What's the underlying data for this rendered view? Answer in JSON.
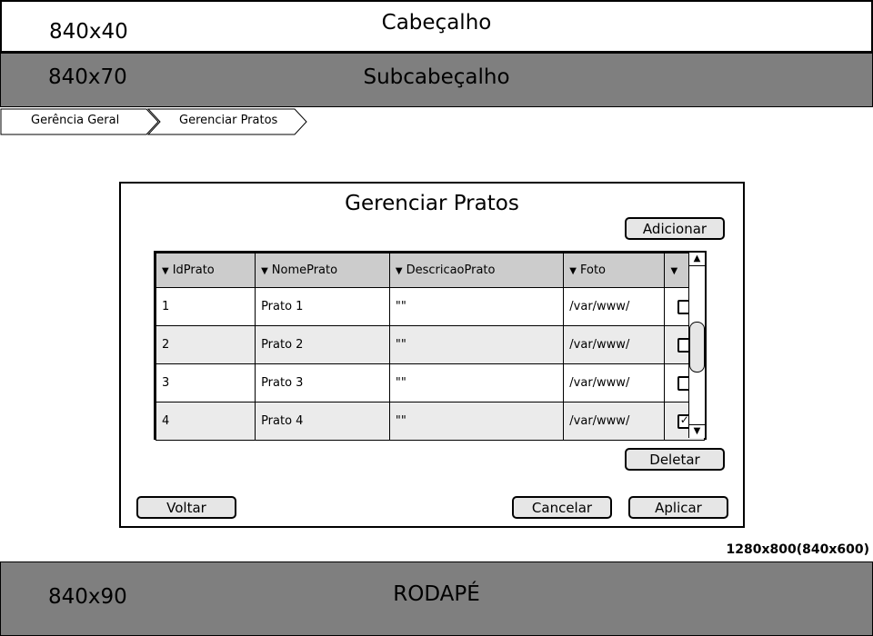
{
  "header": {
    "size": "840x40",
    "title": "Cabeçalho"
  },
  "subheader": {
    "size": "840x70",
    "title": "Subcabeçalho"
  },
  "breadcrumb": {
    "items": [
      {
        "label": "Gerência Geral"
      },
      {
        "label": "Gerenciar Pratos"
      }
    ]
  },
  "panel": {
    "title": "Gerenciar Pratos",
    "add_label": "Adicionar",
    "delete_label": "Deletar",
    "back_label": "Voltar",
    "cancel_label": "Cancelar",
    "apply_label": "Aplicar",
    "table": {
      "columns": [
        "IdPrato",
        "NomePrato",
        "DescricaoPrato",
        "Foto",
        ""
      ],
      "rows": [
        {
          "id": "1",
          "name": "Prato 1",
          "desc": "\"\"",
          "photo": "/var/www/",
          "checked": false
        },
        {
          "id": "2",
          "name": "Prato 2",
          "desc": "\"\"",
          "photo": "/var/www/",
          "checked": false
        },
        {
          "id": "3",
          "name": "Prato 3",
          "desc": "\"\"",
          "photo": "/var/www/",
          "checked": false
        },
        {
          "id": "4",
          "name": "Prato 4",
          "desc": "\"\"",
          "photo": "/var/www/",
          "checked": true
        }
      ]
    }
  },
  "resolution_note": "1280x800(840x600)",
  "footer": {
    "size": "840x90",
    "title": "RODAPÉ"
  },
  "colors": {
    "bar_gray": "#7f7f7f",
    "header_gray": "#cccccc",
    "alt_row": "#ebebeb",
    "button": "#e6e6e6"
  }
}
